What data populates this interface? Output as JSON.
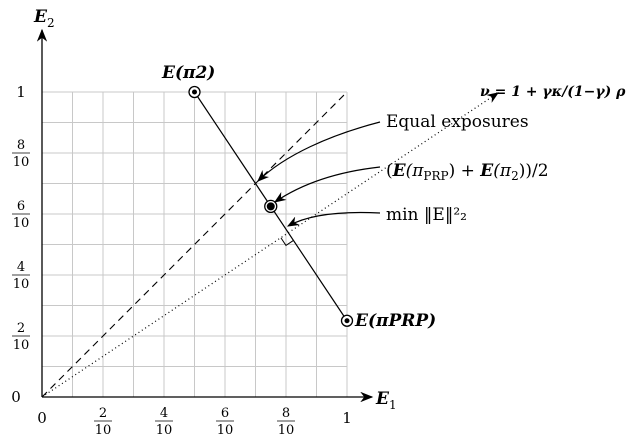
{
  "axes": {
    "x_label": {
      "sym": "E",
      "sub": "1"
    },
    "y_label": {
      "sym": "E",
      "sub": "2"
    },
    "x_ticks": [
      {
        "v": 0,
        "num": "0",
        "den": ""
      },
      {
        "v": 0.2,
        "num": "2",
        "den": "10"
      },
      {
        "v": 0.4,
        "num": "4",
        "den": "10"
      },
      {
        "v": 0.6,
        "num": "6",
        "den": "10"
      },
      {
        "v": 0.8,
        "num": "8",
        "den": "10"
      },
      {
        "v": 1,
        "num": "1",
        "den": ""
      }
    ],
    "y_ticks": [
      {
        "v": 0,
        "num": "0",
        "den": ""
      },
      {
        "v": 0.2,
        "num": "2",
        "den": "10"
      },
      {
        "v": 0.4,
        "num": "4",
        "den": "10"
      },
      {
        "v": 0.6,
        "num": "6",
        "den": "10"
      },
      {
        "v": 0.8,
        "num": "8",
        "den": "10"
      },
      {
        "v": 1,
        "num": "1",
        "den": ""
      }
    ],
    "grid_step": 0.1,
    "range": [
      0,
      1
    ]
  },
  "points": {
    "pi2": {
      "x": 0.5,
      "y": 1.0,
      "label": "E(π2)",
      "sym": "E",
      "arg": "π",
      "sub": "2"
    },
    "prp": {
      "x": 1.0,
      "y": 0.25,
      "label": "E(πPRP)",
      "sym": "E",
      "arg": "π",
      "sub": "PRP"
    },
    "mid": {
      "x": 0.75,
      "y": 0.625
    }
  },
  "lines": {
    "equal_exposures": {
      "from": [
        0,
        0
      ],
      "to": [
        1,
        1
      ],
      "style": "dashed"
    },
    "nu_ray": {
      "from": [
        0,
        0
      ],
      "to": [
        1.495,
        0.997
      ],
      "style": "dotted",
      "label": "ν = 1 + γκ/(1−γ) ρ",
      "lhs": "ν = 1 + ",
      "num": "γκ",
      "den": "1−γ",
      "rho": "ρ"
    },
    "min_norm_point": [
      0.808,
      0.538
    ],
    "equal_point": [
      0.7,
      0.7
    ]
  },
  "annotations": {
    "equal": "Equal exposures",
    "midpoint": "(E(πPRP) + E(π2))/2",
    "midpoint_parts": {
      "open": "(",
      "sym": "E",
      "pi": "(π",
      "sub1": "PRP",
      "plus": ") + ",
      "sym2": "E",
      "pi2": "(π",
      "sub2": "2",
      "close": "))/2"
    },
    "min": "min ‖E‖²₂",
    "min_parts": {
      "word": "min ‖",
      "sym": "E",
      "bars": "‖",
      "sup": "2",
      "sub": "2"
    }
  }
}
